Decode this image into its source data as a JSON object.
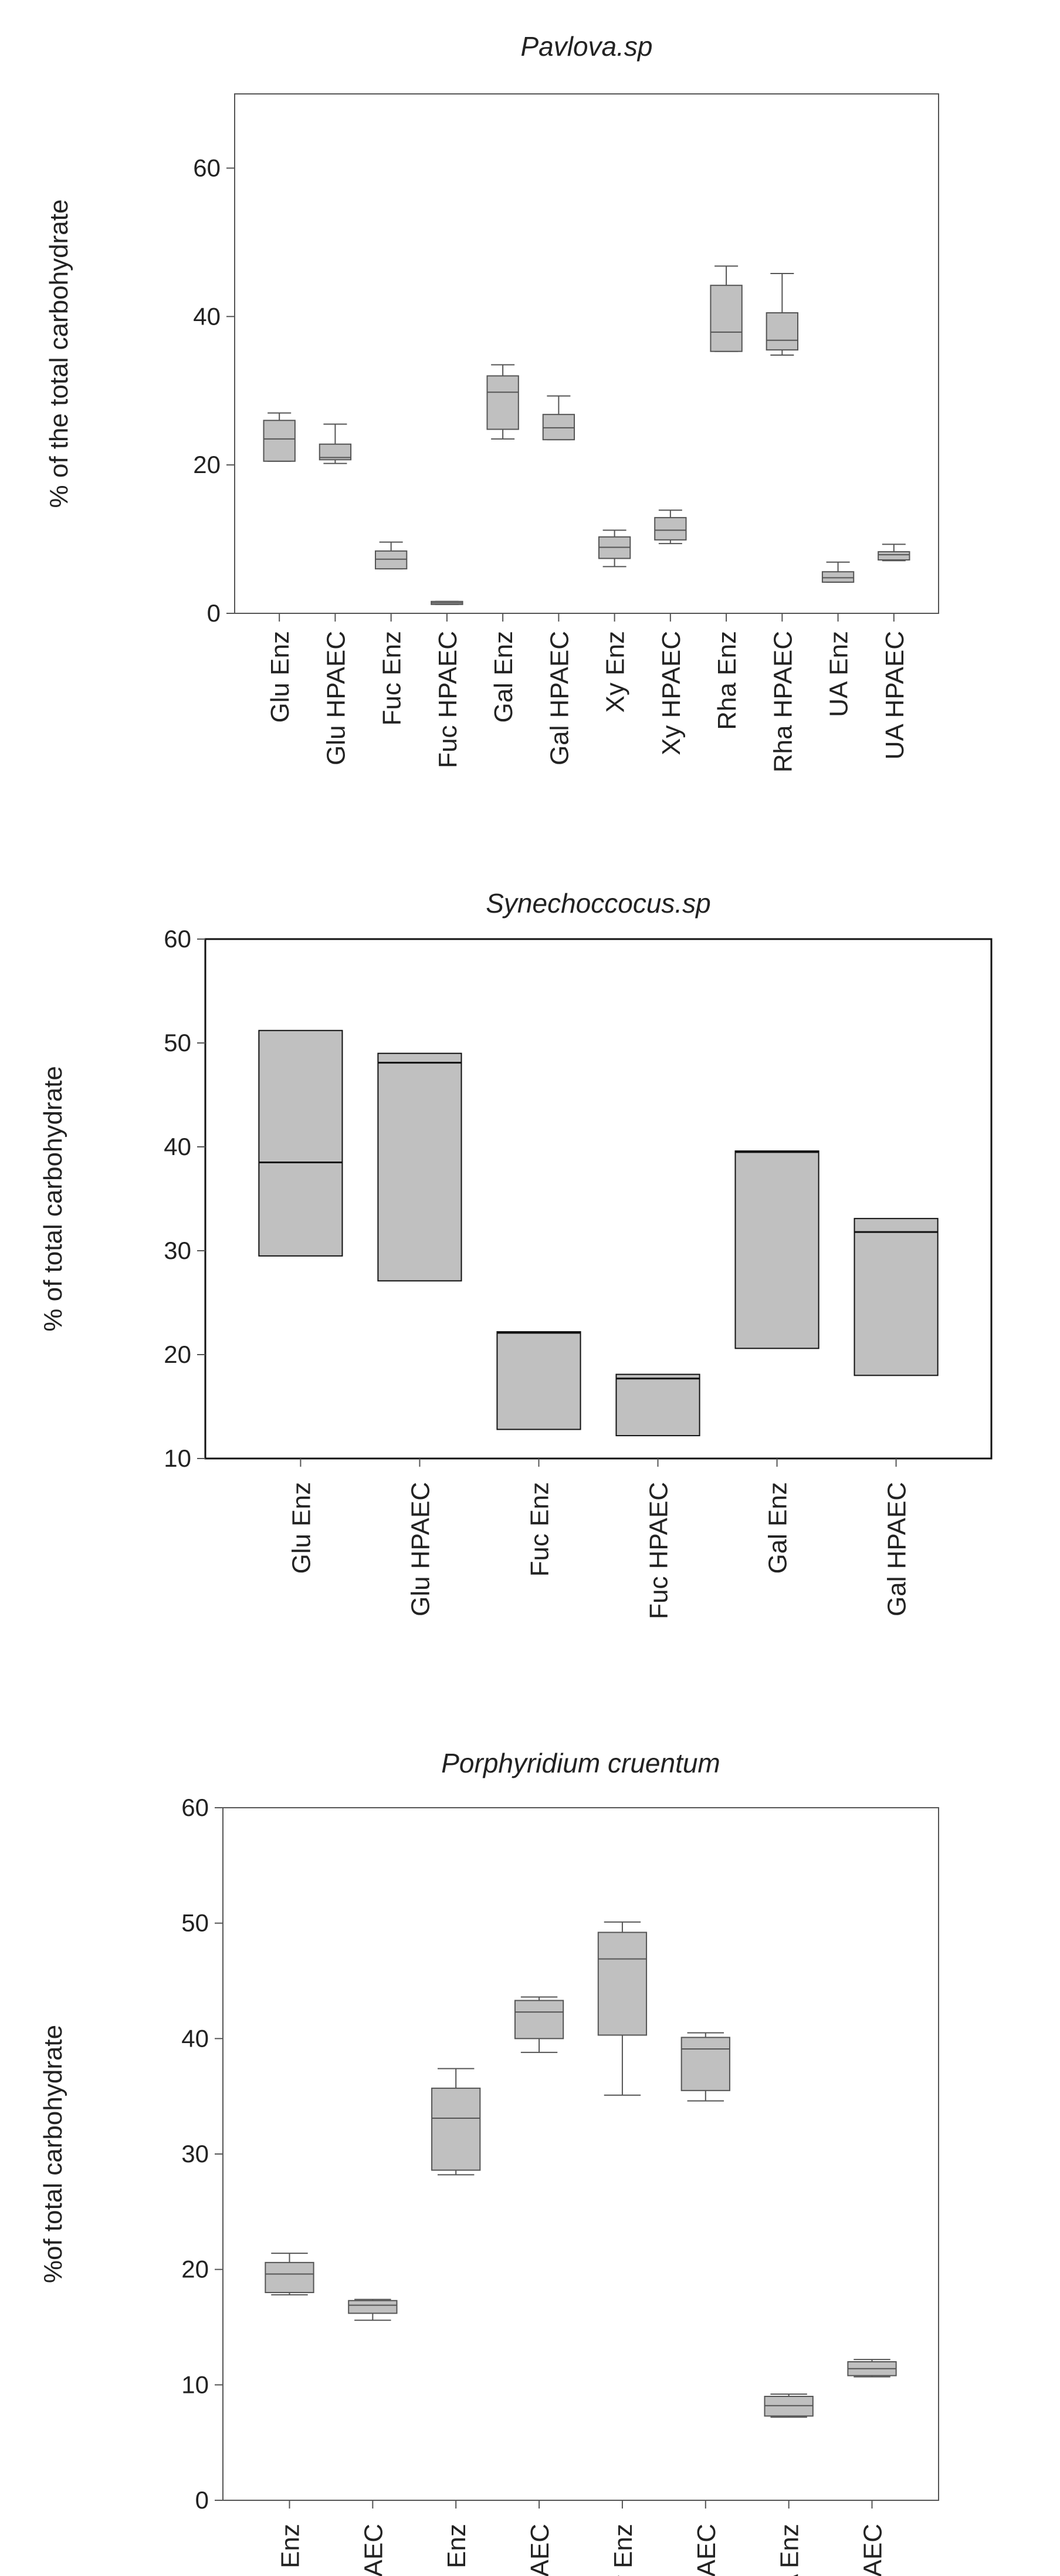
{
  "chart_data": [
    {
      "type": "box",
      "title": "Pavlova.sp",
      "ylabel": "% of the total carbohydrate",
      "ylim": [
        0,
        70
      ],
      "yticks": [
        0,
        20,
        40,
        60
      ],
      "categories": [
        "Glu Enz",
        "Glu HPAEC",
        "Fuc Enz",
        "Fuc HPAEC",
        "Gal Enz",
        "Gal HPAEC",
        "Xy Enz",
        "Xy HPAEC",
        "Rha Enz",
        "Rha HPAEC",
        "UA Enz",
        "UA HPAEC"
      ],
      "boxes": [
        {
          "min": 20.5,
          "q1": 20.5,
          "median": 23.5,
          "q3": 26.0,
          "max": 27.0
        },
        {
          "min": 20.2,
          "q1": 20.7,
          "median": 21.0,
          "q3": 22.8,
          "max": 25.5
        },
        {
          "min": 6.0,
          "q1": 6.0,
          "median": 7.3,
          "q3": 8.4,
          "max": 9.6
        },
        {
          "min": 1.2,
          "q1": 1.2,
          "median": 1.4,
          "q3": 1.6,
          "max": 1.6
        },
        {
          "min": 23.5,
          "q1": 24.8,
          "median": 29.8,
          "q3": 32.0,
          "max": 33.5
        },
        {
          "min": 23.4,
          "q1": 23.4,
          "median": 25.0,
          "q3": 26.8,
          "max": 29.3
        },
        {
          "min": 6.3,
          "q1": 7.4,
          "median": 8.9,
          "q3": 10.3,
          "max": 11.2
        },
        {
          "min": 9.4,
          "q1": 9.9,
          "median": 11.2,
          "q3": 12.9,
          "max": 13.9
        },
        {
          "min": 35.3,
          "q1": 35.3,
          "median": 37.9,
          "q3": 44.2,
          "max": 46.8
        },
        {
          "min": 34.8,
          "q1": 35.5,
          "median": 36.8,
          "q3": 40.5,
          "max": 45.8
        },
        {
          "min": 4.2,
          "q1": 4.2,
          "median": 4.8,
          "q3": 5.6,
          "max": 6.9
        },
        {
          "min": 7.1,
          "q1": 7.2,
          "median": 7.9,
          "q3": 8.3,
          "max": 9.3
        }
      ]
    },
    {
      "type": "box",
      "title": "Synechoccocus.sp",
      "ylabel": "% of total carbohydrate",
      "ylim": [
        10,
        60
      ],
      "yticks": [
        10,
        20,
        30,
        40,
        50,
        60
      ],
      "categories": [
        "Glu Enz",
        "Glu HPAEC",
        "Fuc Enz",
        "Fuc HPAEC",
        "Gal Enz",
        "Gal HPAEC"
      ],
      "boxes": [
        {
          "min": 29.5,
          "q1": 29.5,
          "median": 38.5,
          "q3": 51.2,
          "max": 51.2
        },
        {
          "min": 27.1,
          "q1": 27.1,
          "median": 48.1,
          "q3": 49.0,
          "max": 49.0
        },
        {
          "min": 12.8,
          "q1": 12.8,
          "median": 22.1,
          "q3": 22.2,
          "max": 22.2
        },
        {
          "min": 12.2,
          "q1": 12.2,
          "median": 17.7,
          "q3": 18.1,
          "max": 18.1
        },
        {
          "min": 20.6,
          "q1": 20.6,
          "median": 39.5,
          "q3": 39.6,
          "max": 39.6
        },
        {
          "min": 18.0,
          "q1": 18.0,
          "median": 31.8,
          "q3": 33.1,
          "max": 33.1
        }
      ]
    },
    {
      "type": "box",
      "title": "Porphyridium cruentum",
      "ylabel": "%of total carbohydrate",
      "ylim": [
        0,
        60
      ],
      "yticks": [
        0,
        10,
        20,
        30,
        40,
        50,
        60
      ],
      "categories": [
        "Glu Enz",
        "Glu HPAEC",
        "Gal Enz",
        "Gal HPAEC",
        "Xy Enz",
        "Xy HPAEC",
        "UA Enz",
        "UA HPAEC"
      ],
      "boxes": [
        {
          "min": 17.8,
          "q1": 18.0,
          "median": 19.6,
          "q3": 20.6,
          "max": 21.4
        },
        {
          "min": 15.6,
          "q1": 16.2,
          "median": 16.9,
          "q3": 17.3,
          "max": 17.4
        },
        {
          "min": 28.2,
          "q1": 28.6,
          "median": 33.1,
          "q3": 35.7,
          "max": 37.4
        },
        {
          "min": 38.8,
          "q1": 40.0,
          "median": 42.3,
          "q3": 43.3,
          "max": 43.6
        },
        {
          "min": 35.1,
          "q1": 40.3,
          "median": 46.9,
          "q3": 49.2,
          "max": 50.1
        },
        {
          "min": 34.6,
          "q1": 35.5,
          "median": 39.1,
          "q3": 40.1,
          "max": 40.5
        },
        {
          "min": 7.2,
          "q1": 7.3,
          "median": 8.2,
          "q3": 9.0,
          "max": 9.2
        },
        {
          "min": 10.7,
          "q1": 10.8,
          "median": 11.4,
          "q3": 12.0,
          "max": 12.2
        }
      ]
    }
  ],
  "colors": {
    "box_fill": "#c0c0c0",
    "axis_frame": "#555555",
    "whisker": "#555555",
    "text": "#222222"
  }
}
